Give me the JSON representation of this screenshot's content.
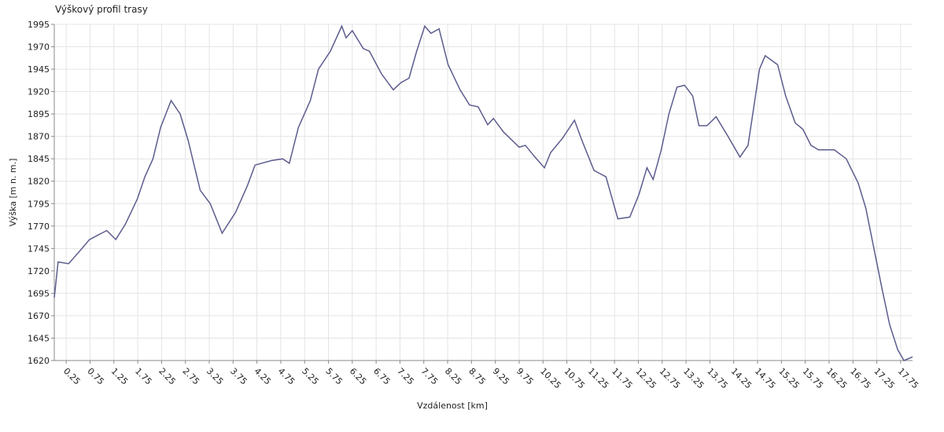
{
  "chart_data": {
    "type": "line",
    "title": "Výškový profil trasy",
    "x_label": "Vzdálenost [km]",
    "y_label": "Výška [m n. m.]",
    "x": [
      0,
      0.08,
      0.3,
      0.5,
      0.74,
      1.1,
      1.29,
      1.49,
      1.74,
      1.9,
      2.07,
      2.23,
      2.45,
      2.64,
      2.81,
      3.06,
      3.27,
      3.52,
      3.8,
      4.05,
      4.21,
      4.55,
      4.79,
      4.93,
      5.12,
      5.37,
      5.54,
      5.79,
      6.03,
      6.12,
      6.25,
      6.48,
      6.61,
      6.86,
      7.11,
      7.27,
      7.44,
      7.6,
      7.77,
      7.9,
      8.07,
      8.26,
      8.51,
      8.71,
      8.89,
      9.09,
      9.21,
      9.42,
      9.75,
      9.88,
      10.08,
      10.28,
      10.41,
      10.66,
      10.91,
      11.07,
      11.32,
      11.57,
      11.82,
      12.07,
      12.26,
      12.43,
      12.56,
      12.73,
      12.89,
      13.06,
      13.22,
      13.39,
      13.52,
      13.69,
      13.88,
      14.13,
      14.38,
      14.55,
      14.79,
      14.91,
      15.17,
      15.34,
      15.54,
      15.7,
      15.87,
      16.03,
      16.36,
      16.61,
      16.86,
      17.02,
      17.19,
      17.36,
      17.52,
      17.69,
      17.82,
      18.0
    ],
    "series": [
      {
        "name": "Výška",
        "color": "#5c5c8e",
        "values": [
          1690,
          1730,
          1728,
          1740,
          1755,
          1765,
          1755,
          1772,
          1800,
          1825,
          1845,
          1880,
          1910,
          1895,
          1865,
          1810,
          1795,
          1762,
          1785,
          1815,
          1838,
          1843,
          1845,
          1840,
          1880,
          1910,
          1945,
          1965,
          1993,
          1980,
          1988,
          1968,
          1965,
          1940,
          1922,
          1930,
          1935,
          1965,
          1993,
          1985,
          1990,
          1950,
          1922,
          1905,
          1903,
          1883,
          1890,
          1875,
          1858,
          1860,
          1847,
          1835,
          1852,
          1868,
          1888,
          1865,
          1832,
          1825,
          1778,
          1780,
          1805,
          1835,
          1822,
          1855,
          1895,
          1925,
          1927,
          1915,
          1882,
          1882,
          1892,
          1870,
          1847,
          1860,
          1945,
          1960,
          1950,
          1915,
          1885,
          1878,
          1860,
          1855,
          1855,
          1845,
          1818,
          1790,
          1745,
          1700,
          1660,
          1632,
          1620,
          1624
        ]
      }
    ],
    "xlim": [
      0,
      18
    ],
    "ylim": [
      1620,
      1995
    ],
    "xticks": [
      0.25,
      0.75,
      1.25,
      1.75,
      2.25,
      2.75,
      3.25,
      3.75,
      4.25,
      4.75,
      5.25,
      5.75,
      6.25,
      6.75,
      7.25,
      7.75,
      8.25,
      8.75,
      9.25,
      9.75,
      10.25,
      10.75,
      11.25,
      11.75,
      12.25,
      12.75,
      13.25,
      13.75,
      14.25,
      14.75,
      15.25,
      15.75,
      16.25,
      16.75,
      17.25,
      17.75
    ],
    "yticks": [
      1620,
      1645,
      1670,
      1695,
      1720,
      1745,
      1770,
      1795,
      1820,
      1845,
      1870,
      1895,
      1920,
      1945,
      1970,
      1995
    ],
    "grid": true
  }
}
